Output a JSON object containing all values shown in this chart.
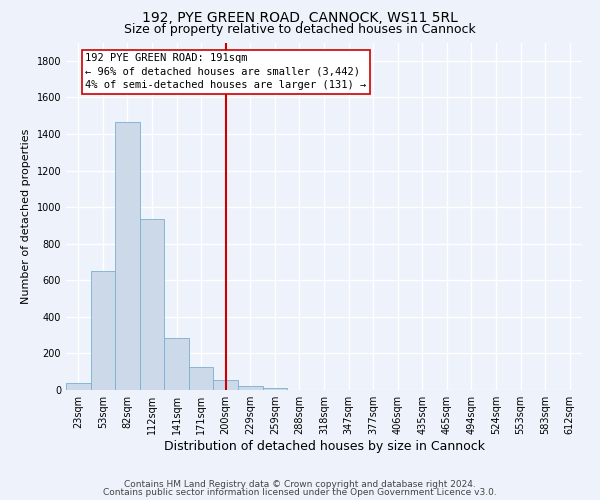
{
  "title1": "192, PYE GREEN ROAD, CANNOCK, WS11 5RL",
  "title2": "Size of property relative to detached houses in Cannock",
  "xlabel": "Distribution of detached houses by size in Cannock",
  "ylabel": "Number of detached properties",
  "footer1": "Contains HM Land Registry data © Crown copyright and database right 2024.",
  "footer2": "Contains public sector information licensed under the Open Government Licence v3.0.",
  "bin_labels": [
    "23sqm",
    "53sqm",
    "82sqm",
    "112sqm",
    "141sqm",
    "171sqm",
    "200sqm",
    "229sqm",
    "259sqm",
    "288sqm",
    "318sqm",
    "347sqm",
    "377sqm",
    "406sqm",
    "435sqm",
    "465sqm",
    "494sqm",
    "524sqm",
    "553sqm",
    "583sqm",
    "612sqm"
  ],
  "bar_values": [
    40,
    648,
    1467,
    935,
    283,
    128,
    55,
    22,
    10,
    0,
    0,
    0,
    0,
    0,
    0,
    0,
    0,
    0,
    0,
    0,
    0
  ],
  "bar_color": "#ccd9e8",
  "bar_edge_color": "#7aafd4",
  "vline_x": 6.0,
  "vline_color": "#cc0000",
  "annotation_text": "192 PYE GREEN ROAD: 191sqm\n← 96% of detached houses are smaller (3,442)\n4% of semi-detached houses are larger (131) →",
  "annotation_box_color": "#cc0000",
  "ylim": [
    0,
    1900
  ],
  "yticks": [
    0,
    200,
    400,
    600,
    800,
    1000,
    1200,
    1400,
    1600,
    1800
  ],
  "background_color": "#eef2fa",
  "grid_color": "#ffffff",
  "title1_fontsize": 10,
  "title2_fontsize": 9,
  "xlabel_fontsize": 9,
  "ylabel_fontsize": 8,
  "tick_fontsize": 7,
  "annotation_fontsize": 7.5,
  "footer_fontsize": 6.5
}
